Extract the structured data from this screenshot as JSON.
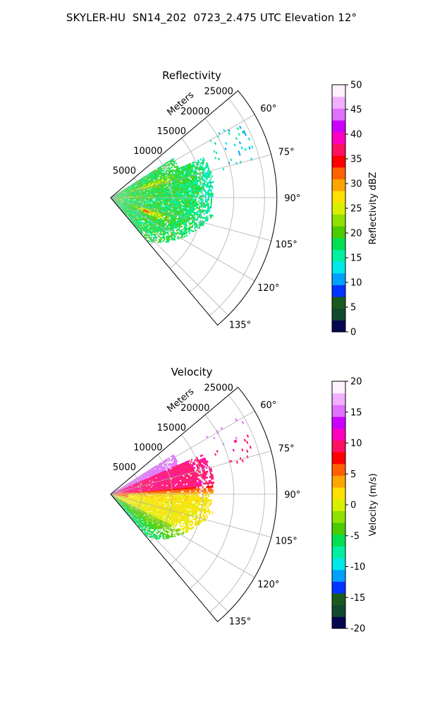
{
  "figure": {
    "title": "SKYLER-HU  SN14_202  0723_2.475 UTC Elevation 12°"
  },
  "chart_data": [
    {
      "type": "heatmap",
      "subtype": "polar-sector",
      "title": "Reflectivity",
      "radial_axis": {
        "label": "Meters",
        "ticks": [
          5000,
          10000,
          15000,
          20000,
          25000
        ],
        "range": [
          0,
          27000
        ]
      },
      "angular_axis": {
        "unit": "degrees",
        "ticks": [
          "60°",
          "75°",
          "90°",
          "105°",
          "120°",
          "135°"
        ],
        "range": [
          50,
          140
        ]
      },
      "grid": true,
      "colorbar": {
        "label": "Reflectivity dBZ",
        "range": [
          0,
          50
        ],
        "ticks": [
          0,
          5,
          10,
          15,
          20,
          25,
          30,
          35,
          40,
          45,
          50
        ],
        "stops": [
          "#050550",
          "#0f4a30",
          "#1b5a1e",
          "#0033ff",
          "#00a0ff",
          "#00e8e8",
          "#00f0a0",
          "#00e050",
          "#4ccc00",
          "#90e000",
          "#d8f000",
          "#ffe000",
          "#ffa500",
          "#ff6000",
          "#ff0000",
          "#ff1060",
          "#ff00c0",
          "#cc00ff",
          "#e070ff",
          "#f0b0ff",
          "#fff0ff"
        ]
      },
      "observed_range": [
        10,
        40
      ],
      "echo_note": "Echo concentrated 60°–135°, mostly 15–25 dBZ, max ~40 dBZ near 110° at ~6 km"
    },
    {
      "type": "heatmap",
      "subtype": "polar-sector",
      "title": "Velocity",
      "radial_axis": {
        "label": "Meters",
        "ticks": [
          5000,
          10000,
          15000,
          20000,
          25000
        ],
        "range": [
          0,
          27000
        ]
      },
      "angular_axis": {
        "unit": "degrees",
        "ticks": [
          "60°",
          "75°",
          "90°",
          "105°",
          "120°",
          "135°"
        ],
        "range": [
          50,
          140
        ]
      },
      "grid": true,
      "colorbar": {
        "label": "Velocity (m/s)",
        "range": [
          -20,
          20
        ],
        "ticks": [
          -20,
          -15,
          -10,
          -5,
          0,
          5,
          10,
          15,
          20
        ],
        "stops": [
          "#050550",
          "#0f4a30",
          "#1b5a1e",
          "#0033ff",
          "#00a0ff",
          "#00e8e8",
          "#00f0a0",
          "#00e050",
          "#4ccc00",
          "#90e000",
          "#d8f000",
          "#ffe000",
          "#ffa500",
          "#ff6000",
          "#ff0000",
          "#ff1060",
          "#ff00c0",
          "#cc00ff",
          "#e070ff",
          "#f0b0ff",
          "#fff0ff"
        ]
      },
      "observed_range": [
        -6,
        16
      ],
      "echo_note": "Outbound ~9–11 m/s north of 85°, near 0 to 2 m/s south, ~-4 m/s at far southern edge; ~15 m/s cluster near 60°"
    }
  ]
}
